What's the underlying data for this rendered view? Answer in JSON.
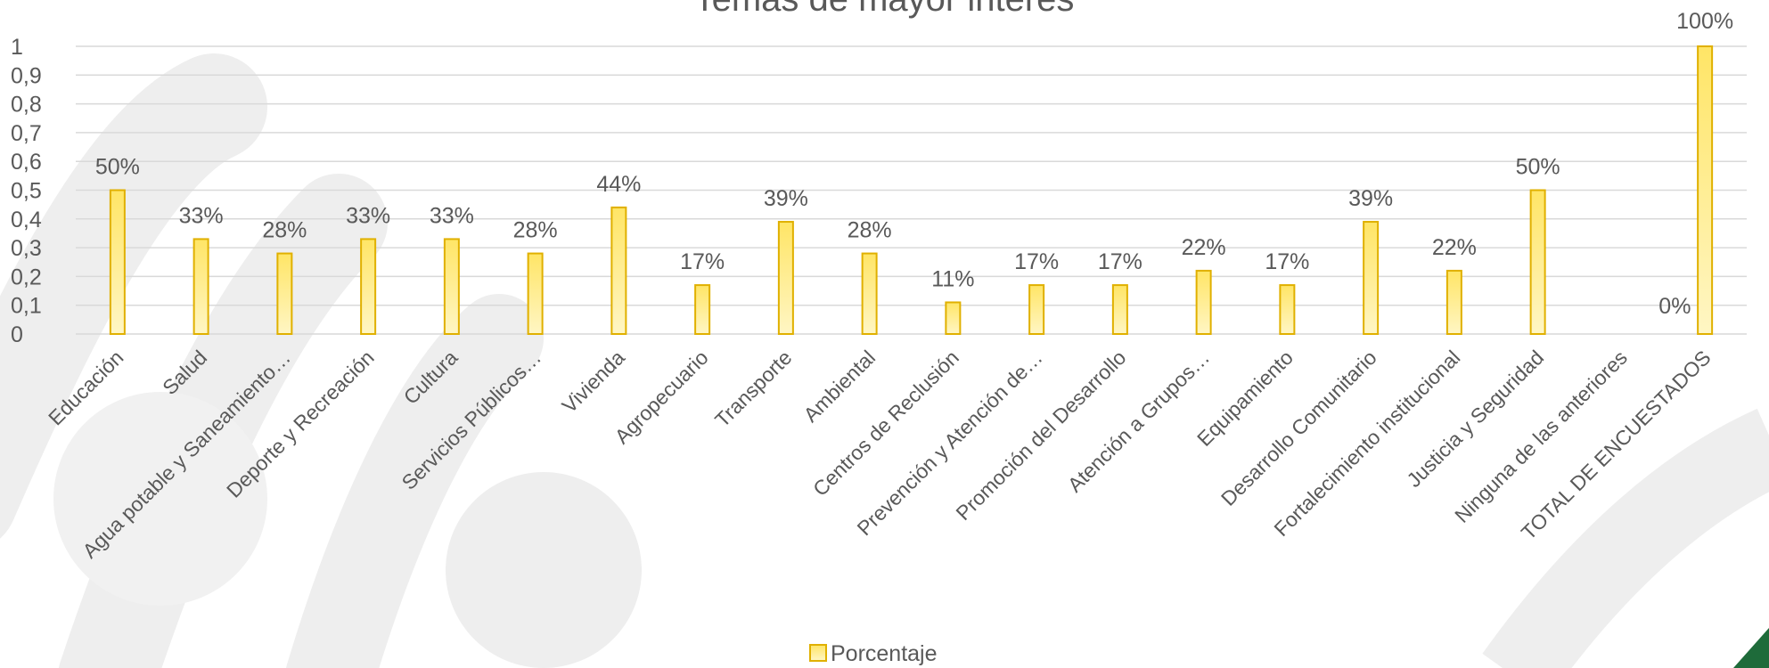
{
  "chart_data": {
    "type": "bar",
    "title": "Temas de mayor interés",
    "categories": [
      "Educación",
      "Salud",
      "Agua potable y Saneamiento…",
      "Deporte y Recreación",
      "Cultura",
      "Servicios Públicos…",
      "Vivienda",
      "Agropecuario",
      "Transporte",
      "Ambiental",
      "Centros de Reclusión",
      "Prevención y Atención de…",
      "Promoción del Desarrollo",
      "Atención a Grupos…",
      "Equipamiento",
      "Desarrollo Comunitario",
      "Fortalecimiento institucional",
      "Justicia y Seguridad",
      "Ninguna de las anteriores",
      "TOTAL DE ENCUESTADOS"
    ],
    "series": [
      {
        "name": "Porcentaje",
        "values": [
          0.5,
          0.33,
          0.28,
          0.33,
          0.33,
          0.28,
          0.44,
          0.17,
          0.39,
          0.28,
          0.11,
          0.17,
          0.17,
          0.22,
          0.17,
          0.39,
          0.22,
          0.5,
          0.0,
          1.0
        ],
        "data_labels": [
          "50%",
          "33%",
          "28%",
          "33%",
          "33%",
          "28%",
          "44%",
          "17%",
          "39%",
          "28%",
          "11%",
          "17%",
          "17%",
          "22%",
          "17%",
          "39%",
          "22%",
          "50%",
          "0%",
          "100%"
        ]
      }
    ],
    "y_ticks": [
      "0",
      "0,1",
      "0,2",
      "0,3",
      "0,4",
      "0,5",
      "0,6",
      "0,7",
      "0,8",
      "0,9",
      "1"
    ],
    "ylim": [
      0,
      1
    ],
    "grid": true,
    "legend": "bottom",
    "colors": {
      "bar_fill_top": "#FFE566",
      "bar_fill_bottom": "#FFF6C4",
      "bar_stroke": "#E0B000",
      "grid": "#D9D9D9",
      "text": "#595959",
      "watermark": "#EEEEEE",
      "corner_accent": "#1E6B3A"
    }
  }
}
